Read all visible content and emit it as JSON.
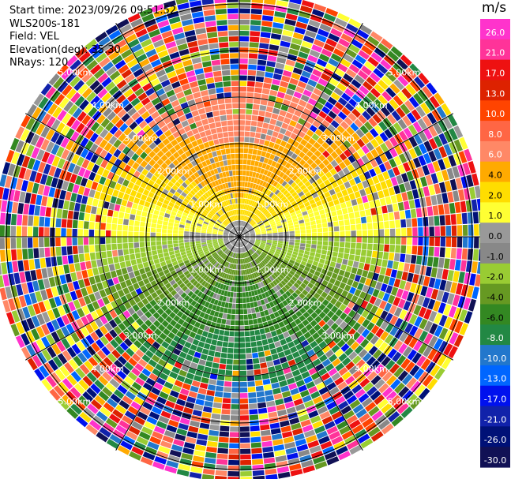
{
  "header": {
    "start_time": "Start time: 2023/09/26 09:51:52",
    "station": "WLS200s-181",
    "field": "Field: VEL",
    "elevation": "Elevation(deg): 35.30",
    "nrays": "NRays: 120"
  },
  "chart_data": {
    "type": "heatmap",
    "projection": "polar-ppi",
    "field": "VEL",
    "units": "m/s",
    "range_rings_km": [
      1,
      2,
      3,
      4,
      5
    ],
    "ring_labels": [
      "1.00km",
      "2.00km",
      "3.00km",
      "4.00km",
      "5.00km"
    ],
    "max_range_km": 5.3,
    "azimuth_lines_deg": [
      0,
      30,
      60,
      90,
      120,
      150,
      180,
      210,
      240,
      270,
      300,
      330
    ],
    "colorbar": {
      "title": "m/s",
      "ticks": [
        "26.0",
        "21.0",
        "17.0",
        "13.0",
        "10.0",
        "8.0",
        "6.0",
        "4.0",
        "2.0",
        "1.0",
        "0.0",
        "-1.0",
        "-2.0",
        "-4.0",
        "-6.0",
        "-8.0",
        "-10.0",
        "-13.0",
        "-17.0",
        "-21.0",
        "-26.0",
        "-30.0"
      ],
      "colors": [
        "#ff33cc",
        "#ff3399",
        "#ee1111",
        "#dd2200",
        "#ff4400",
        "#ff6644",
        "#ff8866",
        "#ffaa00",
        "#ffdd00",
        "#ffff33",
        "#999999",
        "#888888",
        "#99cc33",
        "#669922",
        "#338822",
        "#228844",
        "#2277cc",
        "#0066ff",
        "#0011ee",
        "#1122aa",
        "#001177",
        "#111155"
      ]
    }
  }
}
